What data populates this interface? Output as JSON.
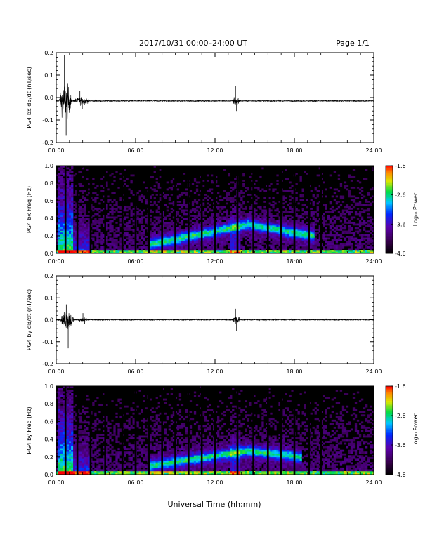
{
  "header": {
    "date_range": "2017/10/31  00:00–24:00 UT",
    "page": "Page 1/1"
  },
  "colors": {
    "background": "#ffffff",
    "spectrogram_bg": "#000000",
    "trace": "#000000"
  },
  "x_axis": {
    "tick_labels": [
      "00:00",
      "06:00",
      "12:00",
      "18:00",
      "24:00"
    ],
    "title": "Universal Time (hh:mm)",
    "range_hours": [
      0,
      24
    ]
  },
  "colorbar": {
    "label": "Log₁₀ Power",
    "tick_labels": [
      "-1.6",
      "-2.6",
      "-3.6",
      "-4.6"
    ],
    "range": [
      -4.6,
      -1.6
    ],
    "colormap": "rainbow (black-purple-blue-cyan-green-yellow-red)"
  },
  "chart_data": [
    {
      "type": "line",
      "ylabel": "PG4 bx dB/dt (nT/sec)",
      "ylim": [
        -0.2,
        0.2
      ],
      "y_tick_labels": [
        "0.2",
        "0.1",
        "0.0",
        "-0.1",
        "-0.2"
      ],
      "xlim": [
        0,
        24
      ],
      "baseline": -0.015,
      "bursts": [
        {
          "t_start": 0.2,
          "t_end": 1.2,
          "peak": 0.19,
          "trough": -0.17
        },
        {
          "t_start": 1.2,
          "t_end": 2.6,
          "peak": 0.03,
          "trough": -0.05
        },
        {
          "t_start": 13.3,
          "t_end": 13.9,
          "peak": 0.05,
          "trough": -0.06
        }
      ]
    },
    {
      "type": "heatmap",
      "ylabel": "PG4 bx Freq (Hz)",
      "ylim": [
        0,
        1
      ],
      "y_tick_labels": [
        "1.0",
        "0.8",
        "0.6",
        "0.4",
        "0.2",
        "0.0"
      ],
      "xlim": [
        0,
        24
      ],
      "z_range": [
        -4.6,
        -1.6
      ],
      "data_gaps_hours": [
        0.7,
        1.6,
        2.6,
        3.7,
        5.0,
        6.0,
        7.0,
        8.0,
        9.0,
        10.0,
        11.0,
        12.0,
        13.7,
        14.9,
        16.0,
        17.0,
        18.0,
        19.1,
        20.0
      ],
      "emission_band": {
        "t_start": 7.0,
        "t_end": 19.5,
        "f_start": 0.1,
        "f_peak": 0.33,
        "t_peak": 14.5,
        "f_end": 0.2
      }
    },
    {
      "type": "line",
      "ylabel": "PG4 by dB/dt (nT/sec)",
      "ylim": [
        -0.2,
        0.2
      ],
      "y_tick_labels": [
        "0.2",
        "0.1",
        "0.0",
        "-0.1",
        "-0.2"
      ],
      "xlim": [
        0,
        24
      ],
      "baseline": 0.0,
      "bursts": [
        {
          "t_start": 0.3,
          "t_end": 1.4,
          "peak": 0.07,
          "trough": -0.13
        },
        {
          "t_start": 1.6,
          "t_end": 2.6,
          "peak": 0.03,
          "trough": -0.02
        },
        {
          "t_start": 13.3,
          "t_end": 13.9,
          "peak": 0.05,
          "trough": -0.05
        }
      ]
    },
    {
      "type": "heatmap",
      "ylabel": "PG4 by Freq (Hz)",
      "ylim": [
        0,
        1
      ],
      "y_tick_labels": [
        "1.0",
        "0.8",
        "0.6",
        "0.4",
        "0.2",
        "0.0"
      ],
      "xlim": [
        0,
        24
      ],
      "z_range": [
        -4.6,
        -1.6
      ],
      "data_gaps_hours": [
        0.7,
        1.6,
        2.6,
        3.7,
        5.0,
        6.0,
        7.0,
        8.0,
        9.0,
        10.0,
        11.0,
        12.0,
        13.7,
        14.9,
        16.0,
        17.0,
        18.0,
        19.1,
        20.0
      ],
      "emission_band": {
        "t_start": 7.0,
        "t_end": 18.5,
        "f_start": 0.1,
        "f_peak": 0.27,
        "t_peak": 14.5,
        "f_end": 0.2
      }
    }
  ]
}
